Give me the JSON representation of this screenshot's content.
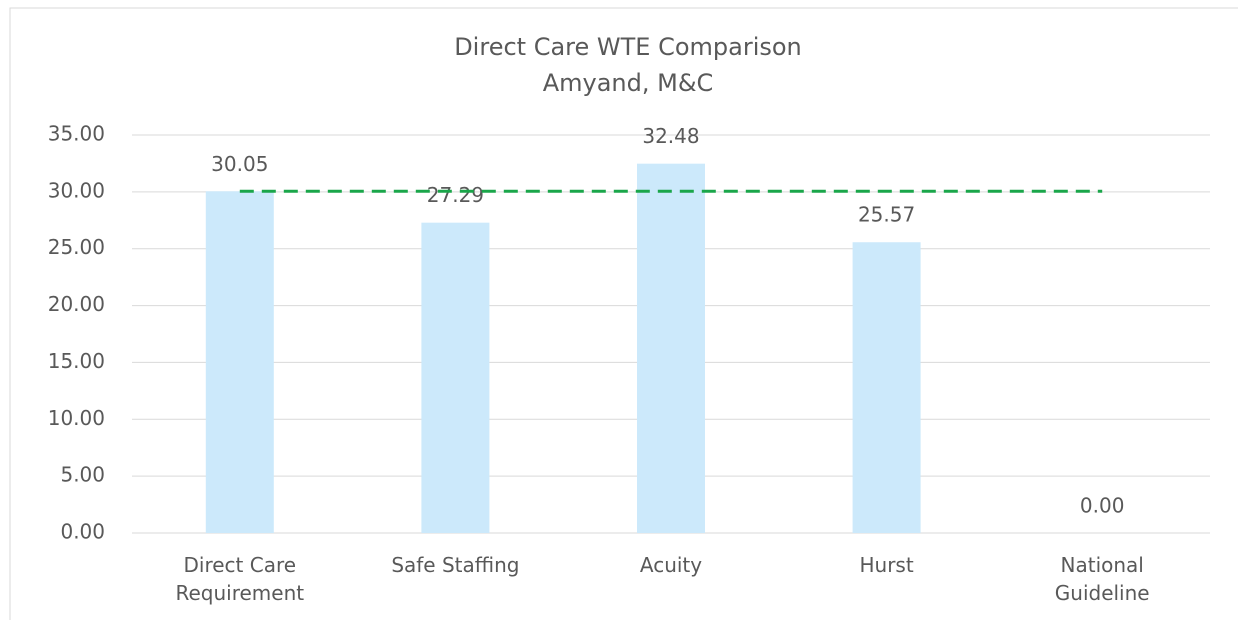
{
  "chart_data": {
    "type": "bar",
    "title": "Direct Care WTE Comparison",
    "subtitle": "Amyand, M&C",
    "categories": [
      "Direct Care Requirement",
      "Safe Staffing",
      "Acuity",
      "Hurst",
      "National Guideline"
    ],
    "values": [
      30.05,
      27.29,
      32.48,
      25.57,
      0
    ],
    "value_labels": [
      "30.05",
      "27.29",
      "32.48",
      "25.57",
      "0.00"
    ],
    "color": "#cce9fb",
    "ylim": [
      0,
      35
    ],
    "yticks": [
      {
        "value": 0,
        "label": "0.00"
      },
      {
        "value": 5,
        "label": "5.00"
      },
      {
        "value": 10,
        "label": "10.00"
      },
      {
        "value": 15,
        "label": "15.00"
      },
      {
        "value": 20,
        "label": "20.00"
      },
      {
        "value": 25,
        "label": "25.00"
      },
      {
        "value": 30,
        "label": "30.00"
      },
      {
        "value": 35,
        "label": "35.00"
      }
    ],
    "grid": true,
    "reference_line": {
      "value": 30.05,
      "color": "#1aa64a",
      "style": "dashed"
    }
  }
}
